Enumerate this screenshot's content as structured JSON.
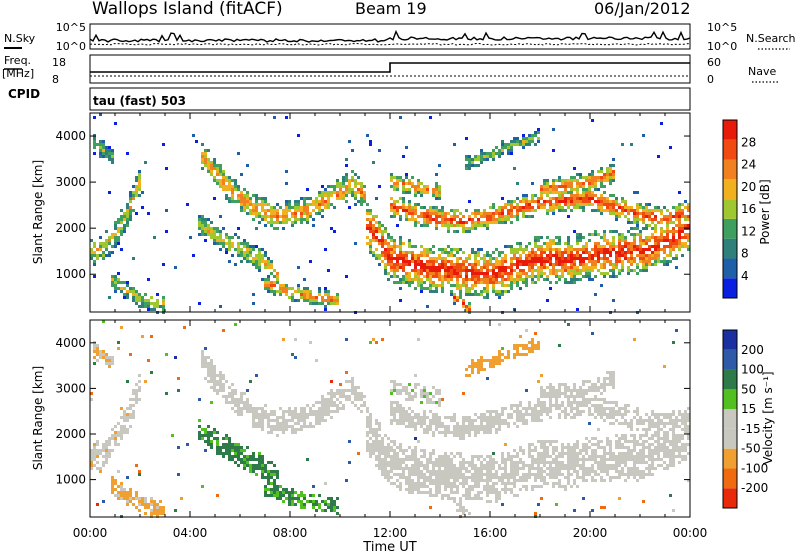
{
  "header": {
    "station": "Wallops Island (fitACF)",
    "beam": "Beam 19",
    "date": "06/Jan/2012"
  },
  "summary_panels": {
    "nsky_label": "N.Sky",
    "nsky_ticks": [
      "10^5",
      "10^0"
    ],
    "nsearch_label": "N.Search",
    "nsearch_ticks": [
      "10^5",
      "10^0"
    ],
    "freq_label": "Freq.",
    "freq_unit": "[MHz]",
    "freq_ticks": [
      "18",
      "8"
    ],
    "nave_label": "Nave",
    "nave_ticks": [
      "60",
      "0"
    ],
    "cpid_label": "CPID",
    "cpid_text": "tau (fast) 503"
  },
  "colors": {
    "power_scale": [
      "#0a1fe0",
      "#1f5fa8",
      "#2f7f7a",
      "#3f9f5f",
      "#9fc830",
      "#f0b020",
      "#f08020",
      "#f04a10",
      "#e81a0a"
    ],
    "velocity_scale": [
      "#1a2fa0",
      "#2f5aa8",
      "#2e7a48",
      "#52c020",
      "#c8c8c0",
      "#c8c8c0",
      "#f0a030",
      "#f06a10",
      "#e82a0a"
    ]
  },
  "chart_data": [
    {
      "type": "heatmap",
      "name": "power",
      "title": "",
      "xlabel": "Time UT",
      "ylabel": "Slant Range [km]",
      "x_ticks": [
        "00:00",
        "04:00",
        "08:00",
        "12:00",
        "16:00",
        "20:00",
        "00:00"
      ],
      "xlim_hours": [
        0,
        24
      ],
      "y_ticks": [
        "1000",
        "2000",
        "3000",
        "4000"
      ],
      "ylim": [
        180,
        4500
      ],
      "colorbar_label": "Power [dB]",
      "colorbar_ticks": [
        "28",
        "24",
        "20",
        "16",
        "12",
        "8",
        "4"
      ],
      "bands": [
        {
          "t": [
            0.0,
            0.5,
            1.0,
            1.5,
            2.0
          ],
          "center": [
            1500,
            1550,
            1850,
            2300,
            3000
          ],
          "width": 320,
          "intensity": 0.6
        },
        {
          "t": [
            0.1,
            0.5,
            1.0
          ],
          "center": [
            3850,
            3700,
            3500
          ],
          "width": 200,
          "intensity": 0.45
        },
        {
          "t": [
            0.8,
            1.5,
            2.2,
            3.0
          ],
          "center": [
            900,
            650,
            420,
            330
          ],
          "width": 200,
          "intensity": 0.55
        },
        {
          "t": [
            4.5,
            5.5,
            6.5,
            7.5,
            8.5,
            9.5,
            10.5,
            11.0
          ],
          "center": [
            3550,
            2900,
            2450,
            2250,
            2350,
            2600,
            2950,
            2700
          ],
          "width": 300,
          "intensity": 0.75
        },
        {
          "t": [
            4.3,
            5.0,
            6.0,
            7.0,
            7.5
          ],
          "center": [
            2100,
            1850,
            1550,
            1250,
            1000
          ],
          "width": 260,
          "intensity": 0.6
        },
        {
          "t": [
            7.0,
            8.0,
            9.0,
            10.0
          ],
          "center": [
            800,
            620,
            500,
            420
          ],
          "width": 180,
          "intensity": 0.8
        },
        {
          "t": [
            11.0,
            11.5,
            12.0,
            13.0,
            14.0,
            15.0,
            16.0,
            17.0,
            18.0,
            19.0,
            20.0,
            21.0,
            22.0,
            23.0,
            24.0
          ],
          "center": [
            2100,
            1800,
            1350,
            1200,
            1100,
            1050,
            1000,
            1150,
            1350,
            1300,
            1400,
            1450,
            1500,
            1700,
            2000
          ],
          "width": 520,
          "intensity": 0.95
        },
        {
          "t": [
            12.0,
            13.0,
            14.0,
            15.0,
            16.0,
            17.0,
            18.0,
            19.0,
            20.0,
            21.0,
            22.0,
            23.0,
            24.0
          ],
          "center": [
            2500,
            2300,
            2200,
            2150,
            2250,
            2400,
            2550,
            2600,
            2650,
            2450,
            2300,
            2200,
            2350
          ],
          "width": 260,
          "intensity": 0.9
        },
        {
          "t": [
            12.0,
            13.0,
            14.0
          ],
          "center": [
            3000,
            2900,
            2800
          ],
          "width": 200,
          "intensity": 0.75
        },
        {
          "t": [
            18.0,
            19.0,
            20.0,
            21.0
          ],
          "center": [
            2850,
            2900,
            3000,
            3200
          ],
          "width": 220,
          "intensity": 0.8
        },
        {
          "t": [
            15.0,
            16.0,
            17.0,
            18.0
          ],
          "center": [
            3400,
            3600,
            3800,
            4000
          ],
          "width": 160,
          "intensity": 0.5
        },
        {
          "t": [
            14.5,
            15.0,
            15.2
          ],
          "center": [
            500,
            350,
            250
          ],
          "width": 120,
          "intensity": 0.9
        }
      ]
    },
    {
      "type": "heatmap",
      "name": "velocity",
      "title": "",
      "xlabel": "Time UT",
      "ylabel": "Slant Range [km]",
      "x_ticks": [
        "00:00",
        "04:00",
        "08:00",
        "12:00",
        "16:00",
        "20:00",
        "00:00"
      ],
      "xlim_hours": [
        0,
        24
      ],
      "y_ticks": [
        "1000",
        "2000",
        "3000",
        "4000"
      ],
      "ylim": [
        180,
        4500
      ],
      "colorbar_label": "Velocity [m s⁻¹]",
      "colorbar_ticks": [
        "200",
        "100",
        "50",
        "15",
        "-15",
        "-50",
        "-100",
        "-200"
      ],
      "bands": [
        {
          "t": [
            0.0,
            0.5,
            1.0,
            1.5,
            2.0
          ],
          "center": [
            1500,
            1550,
            1850,
            2300,
            3000
          ],
          "width": 320,
          "v": -20
        },
        {
          "t": [
            0.1,
            0.5,
            1.0
          ],
          "center": [
            3850,
            3700,
            3500
          ],
          "width": 200,
          "v": -30
        },
        {
          "t": [
            0.8,
            1.5,
            2.2,
            3.0
          ],
          "center": [
            900,
            650,
            420,
            330
          ],
          "width": 200,
          "v": -40
        },
        {
          "t": [
            4.5,
            5.5,
            6.5,
            7.5,
            8.5,
            9.5,
            10.5,
            11.0
          ],
          "center": [
            3550,
            2900,
            2450,
            2250,
            2350,
            2600,
            2950,
            2700
          ],
          "width": 300,
          "v": -5
        },
        {
          "t": [
            4.3,
            5.0,
            6.0,
            7.0,
            7.5
          ],
          "center": [
            2100,
            1850,
            1550,
            1250,
            1000
          ],
          "width": 260,
          "v": 40
        },
        {
          "t": [
            7.0,
            8.0,
            9.0,
            10.0
          ],
          "center": [
            800,
            620,
            500,
            420
          ],
          "width": 180,
          "v": 35
        },
        {
          "t": [
            11.0,
            11.5,
            12.0,
            13.0,
            14.0,
            15.0,
            16.0,
            17.0,
            18.0,
            19.0,
            20.0,
            21.0,
            22.0,
            23.0,
            24.0
          ],
          "center": [
            2100,
            1800,
            1350,
            1200,
            1100,
            1050,
            1000,
            1150,
            1350,
            1300,
            1400,
            1450,
            1500,
            1700,
            2000
          ],
          "width": 520,
          "v": 0
        },
        {
          "t": [
            12.0,
            13.0,
            14.0,
            15.0,
            16.0,
            17.0,
            18.0,
            19.0,
            20.0,
            21.0,
            22.0,
            23.0,
            24.0
          ],
          "center": [
            2500,
            2300,
            2200,
            2150,
            2250,
            2400,
            2550,
            2600,
            2650,
            2450,
            2300,
            2200,
            2350
          ],
          "width": 260,
          "v": -5
        },
        {
          "t": [
            12.0,
            13.0,
            14.0
          ],
          "center": [
            3000,
            2900,
            2800
          ],
          "width": 200,
          "v": 5
        },
        {
          "t": [
            18.0,
            19.0,
            20.0,
            21.0
          ],
          "center": [
            2850,
            2900,
            3000,
            3200
          ],
          "width": 220,
          "v": 0
        },
        {
          "t": [
            15.0,
            16.0,
            17.0,
            18.0
          ],
          "center": [
            3400,
            3600,
            3800,
            4000
          ],
          "width": 160,
          "v": -60
        },
        {
          "t": [
            14.5,
            15.0,
            15.2
          ],
          "center": [
            500,
            350,
            250
          ],
          "width": 120,
          "v": -10
        }
      ]
    }
  ]
}
